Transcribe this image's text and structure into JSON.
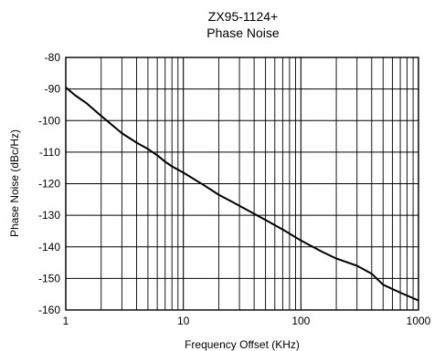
{
  "chart_data": {
    "type": "line",
    "title": "ZX95-1124+",
    "subtitle": "Phase Noise",
    "xlabel": "Frequency Offset (KHz)",
    "ylabel": "Phase Noise (dBc/Hz)",
    "x_scale": "log",
    "xlim": [
      1,
      1000
    ],
    "ylim": [
      -160,
      -80
    ],
    "grid": true,
    "x_ticks": [
      1,
      10,
      100,
      1000
    ],
    "x_tick_labels": [
      "1",
      "10",
      "100",
      "1000"
    ],
    "y_ticks": [
      -80,
      -90,
      -100,
      -110,
      -120,
      -130,
      -140,
      -150,
      -160
    ],
    "y_tick_labels": [
      "-80",
      "-90",
      "-100",
      "-110",
      "-120",
      "-130",
      "-140",
      "-150",
      "-160"
    ],
    "series": [
      {
        "color": "#000000",
        "x": [
          1,
          1.2,
          1.5,
          2,
          3,
          4,
          5,
          6,
          7,
          8,
          10,
          15,
          20,
          30,
          50,
          70,
          100,
          150,
          200,
          300,
          400,
          500,
          700,
          1000
        ],
        "y": [
          -89.5,
          -92,
          -94.5,
          -98.5,
          -104,
          -107,
          -109,
          -111,
          -113,
          -114.5,
          -116.5,
          -120.5,
          -123.5,
          -127,
          -131.5,
          -134.5,
          -138,
          -141.5,
          -143.7,
          -146,
          -148.5,
          -152,
          -154.5,
          -157
        ]
      }
    ]
  }
}
